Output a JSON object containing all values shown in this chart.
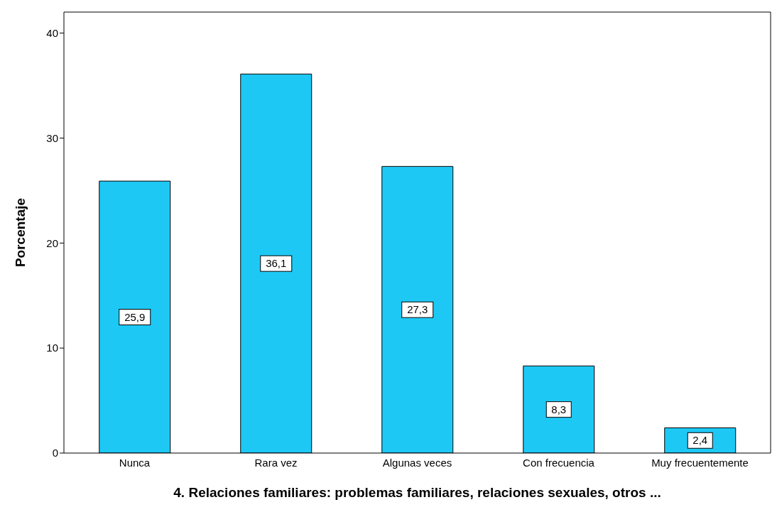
{
  "chart_data": {
    "type": "bar",
    "xlabel": "4. Relaciones familiares: problemas familiares, relaciones sexuales, otros ...",
    "ylabel": "Porcentaje",
    "categories": [
      "Nunca",
      "Rara vez",
      "Algunas veces",
      "Con frecuencia",
      "Muy frecuentemente"
    ],
    "values": [
      25.9,
      36.1,
      27.3,
      8.3,
      2.4
    ],
    "value_labels": [
      "25,9",
      "36,1",
      "27,3",
      "8,3",
      "2,4"
    ],
    "color": "#1ec8f5",
    "ylim": [
      0,
      42
    ],
    "yticks": [
      0,
      10,
      20,
      30,
      40
    ],
    "grid": false
  }
}
